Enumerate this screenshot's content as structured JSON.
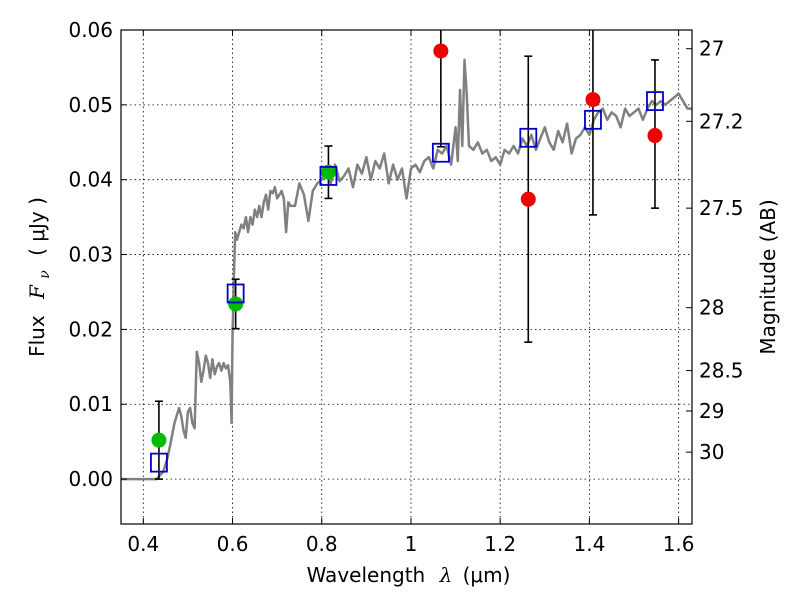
{
  "chart_data": {
    "type": "scatter",
    "xlabel_text": "Wavelength",
    "xlabel_symbol": "λ",
    "xlabel_unit": "(μm)",
    "ylabel_text": "Flux",
    "ylabel_symbol": "F",
    "ylabel_subscript": "ν",
    "ylabel_unit": "( μJy )",
    "y2label": "Magnitude (AB)",
    "xlim": [
      0.35,
      1.63
    ],
    "ylim": [
      -0.006,
      0.06
    ],
    "grid": true,
    "x_ticks": [
      {
        "value": 0.4,
        "label": "0.4"
      },
      {
        "value": 0.6,
        "label": "0.6"
      },
      {
        "value": 0.8,
        "label": "0.8"
      },
      {
        "value": 1.0,
        "label": "1"
      },
      {
        "value": 1.2,
        "label": "1.2"
      },
      {
        "value": 1.4,
        "label": "1.4"
      },
      {
        "value": 1.6,
        "label": "1.6"
      }
    ],
    "y_ticks": [
      {
        "value": 0.0,
        "label": "0.00"
      },
      {
        "value": 0.01,
        "label": "0.01"
      },
      {
        "value": 0.02,
        "label": "0.02"
      },
      {
        "value": 0.03,
        "label": "0.03"
      },
      {
        "value": 0.04,
        "label": "0.04"
      },
      {
        "value": 0.05,
        "label": "0.05"
      },
      {
        "value": 0.06,
        "label": "0.06"
      }
    ],
    "y2_ticks": [
      {
        "flux": 0.0575,
        "label": "27"
      },
      {
        "flux": 0.0478,
        "label": "27.2"
      },
      {
        "flux": 0.0362,
        "label": "27.5"
      },
      {
        "flux": 0.0229,
        "label": "28"
      },
      {
        "flux": 0.0145,
        "label": "28.5"
      },
      {
        "flux": 0.0091,
        "label": "29"
      },
      {
        "flux": 0.0036,
        "label": "30"
      }
    ],
    "series": [
      {
        "name": "model-spectrum",
        "kind": "line",
        "color": "#808080",
        "x": [
          0.35,
          0.43,
          0.445,
          0.455,
          0.46,
          0.465,
          0.47,
          0.475,
          0.48,
          0.485,
          0.49,
          0.495,
          0.5,
          0.505,
          0.51,
          0.515,
          0.52,
          0.525,
          0.53,
          0.535,
          0.54,
          0.545,
          0.55,
          0.555,
          0.56,
          0.565,
          0.57,
          0.575,
          0.58,
          0.585,
          0.59,
          0.595,
          0.598,
          0.6,
          0.603,
          0.606,
          0.61,
          0.615,
          0.62,
          0.625,
          0.63,
          0.635,
          0.64,
          0.645,
          0.65,
          0.655,
          0.66,
          0.665,
          0.67,
          0.675,
          0.68,
          0.685,
          0.69,
          0.695,
          0.7,
          0.705,
          0.71,
          0.715,
          0.72,
          0.725,
          0.73,
          0.74,
          0.75,
          0.76,
          0.77,
          0.78,
          0.79,
          0.8,
          0.81,
          0.82,
          0.83,
          0.84,
          0.85,
          0.86,
          0.87,
          0.88,
          0.89,
          0.9,
          0.91,
          0.92,
          0.93,
          0.94,
          0.95,
          0.96,
          0.97,
          0.98,
          0.99,
          1.0,
          1.01,
          1.02,
          1.03,
          1.04,
          1.05,
          1.06,
          1.07,
          1.08,
          1.09,
          1.1,
          1.105,
          1.11,
          1.115,
          1.12,
          1.125,
          1.13,
          1.14,
          1.15,
          1.16,
          1.17,
          1.18,
          1.19,
          1.2,
          1.21,
          1.22,
          1.23,
          1.24,
          1.25,
          1.26,
          1.27,
          1.28,
          1.29,
          1.3,
          1.31,
          1.32,
          1.33,
          1.34,
          1.35,
          1.36,
          1.37,
          1.38,
          1.39,
          1.4,
          1.41,
          1.42,
          1.43,
          1.44,
          1.45,
          1.46,
          1.47,
          1.48,
          1.49,
          1.5,
          1.51,
          1.52,
          1.53,
          1.54,
          1.55,
          1.56,
          1.57,
          1.58,
          1.59,
          1.6,
          1.61,
          1.62,
          1.63
        ],
        "y": [
          0.0,
          0.0,
          0.001,
          0.003,
          0.0045,
          0.006,
          0.0075,
          0.0085,
          0.0095,
          0.0085,
          0.0065,
          0.0055,
          0.009,
          0.0095,
          0.0075,
          0.0068,
          0.017,
          0.0155,
          0.013,
          0.0145,
          0.0165,
          0.0155,
          0.0135,
          0.016,
          0.014,
          0.015,
          0.0155,
          0.0145,
          0.0155,
          0.0148,
          0.0152,
          0.013,
          0.0075,
          0.019,
          0.027,
          0.033,
          0.032,
          0.033,
          0.034,
          0.0335,
          0.035,
          0.033,
          0.035,
          0.034,
          0.036,
          0.035,
          0.0365,
          0.035,
          0.037,
          0.038,
          0.036,
          0.0385,
          0.0382,
          0.039,
          0.0375,
          0.038,
          0.0385,
          0.0375,
          0.033,
          0.037,
          0.0365,
          0.0365,
          0.0395,
          0.038,
          0.0345,
          0.0385,
          0.0395,
          0.04,
          0.041,
          0.0395,
          0.042,
          0.0398,
          0.0405,
          0.0415,
          0.039,
          0.042,
          0.0408,
          0.043,
          0.04,
          0.0425,
          0.0415,
          0.0435,
          0.0395,
          0.042,
          0.04,
          0.0415,
          0.0375,
          0.0415,
          0.042,
          0.041,
          0.0425,
          0.043,
          0.0415,
          0.044,
          0.0435,
          0.0445,
          0.042,
          0.047,
          0.0425,
          0.052,
          0.0445,
          0.056,
          0.0515,
          0.0445,
          0.044,
          0.045,
          0.0435,
          0.044,
          0.0425,
          0.043,
          0.042,
          0.044,
          0.0435,
          0.0445,
          0.0435,
          0.0455,
          0.0445,
          0.046,
          0.044,
          0.0455,
          0.047,
          0.045,
          0.044,
          0.0465,
          0.045,
          0.0475,
          0.0435,
          0.0455,
          0.046,
          0.047,
          0.046,
          0.048,
          0.049,
          0.0495,
          0.048,
          0.049,
          0.0485,
          0.047,
          0.0495,
          0.0485,
          0.049,
          0.0495,
          0.048,
          0.0495,
          0.0505,
          0.05,
          0.0505,
          0.05,
          0.0505,
          0.051,
          0.0515,
          0.0505,
          0.0495,
          0.0495
        ]
      },
      {
        "name": "green-points",
        "kind": "points",
        "color": "#00bb00",
        "x": [
          0.435,
          0.607,
          0.815
        ],
        "y": [
          0.0052,
          0.0234,
          0.041
        ],
        "err_low": [
          0.0052,
          0.0033,
          0.0035
        ],
        "err_high": [
          0.0052,
          0.0033,
          0.0035
        ]
      },
      {
        "name": "red-points",
        "kind": "points",
        "color": "#ee0000",
        "x": [
          1.067,
          1.263,
          1.408,
          1.547
        ],
        "y": [
          0.0572,
          0.0374,
          0.0507,
          0.0459
        ],
        "err_low": [
          0.0128,
          0.0191,
          0.0154,
          0.0097
        ],
        "err_high": [
          0.0128,
          0.0191,
          0.0154,
          0.0101
        ]
      },
      {
        "name": "model-flux-squares",
        "kind": "squares",
        "color": "#0000cc",
        "x": [
          0.435,
          0.607,
          0.815,
          1.067,
          1.263,
          1.408,
          1.547
        ],
        "y": [
          0.0022,
          0.0248,
          0.0405,
          0.0436,
          0.0456,
          0.048,
          0.0505
        ]
      }
    ]
  }
}
